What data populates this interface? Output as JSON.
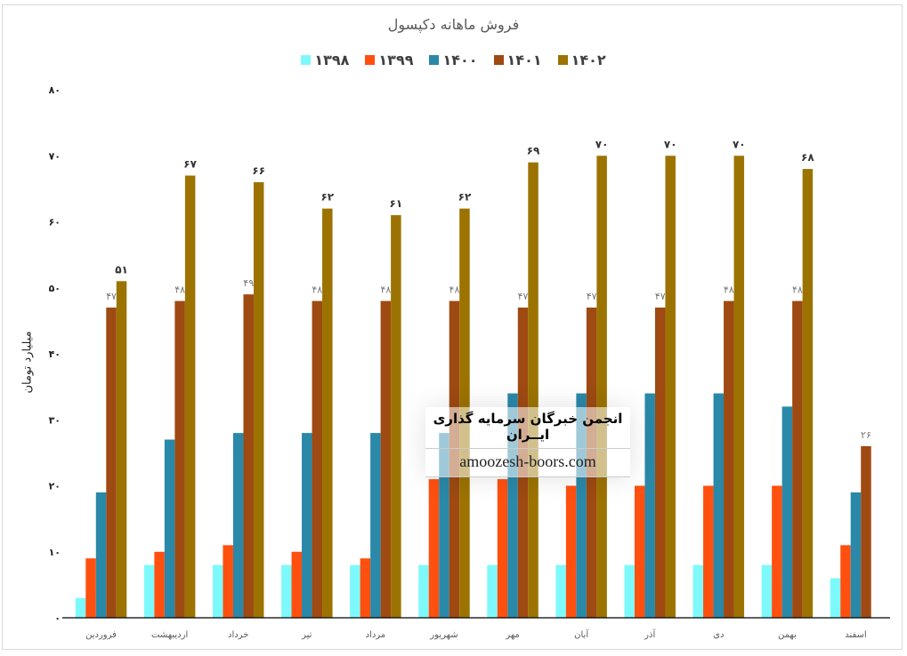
{
  "chart_data": {
    "type": "bar",
    "title": "فروش ماهانه دکپسول",
    "xlabel": "",
    "ylabel": "میلیارد تومان",
    "ylim": [
      0,
      80
    ],
    "yticks": [
      0,
      10,
      20,
      30,
      40,
      50,
      60,
      70,
      80
    ],
    "ytick_labels": [
      "۰",
      "۱۰",
      "۲۰",
      "۳۰",
      "۴۰",
      "۵۰",
      "۶۰",
      "۷۰",
      "۸۰"
    ],
    "legend_position": "top-center",
    "categories": [
      "فروردین",
      "اردیبهشت",
      "خرداد",
      "تیر",
      "مرداد",
      "شهریور",
      "مهر",
      "آبان",
      "آذر",
      "دی",
      "بهمن",
      "اسفند"
    ],
    "series": [
      {
        "name": "۱۳۹۸",
        "color": "#7ef9fb",
        "values": [
          3,
          8,
          8,
          8,
          8,
          8,
          8,
          8,
          8,
          8,
          8,
          6
        ],
        "labels": null
      },
      {
        "name": "۱۳۹۹",
        "color": "#ff5010",
        "values": [
          9,
          10,
          11,
          10,
          9,
          21,
          21,
          20,
          20,
          20,
          20,
          11
        ],
        "labels": null
      },
      {
        "name": "۱۴۰۰",
        "color": "#2a88a8",
        "values": [
          19,
          27,
          28,
          28,
          28,
          28,
          34,
          34,
          34,
          34,
          32,
          19
        ],
        "labels": null
      },
      {
        "name": "۱۴۰۱",
        "color": "#9e4a12",
        "values": [
          47,
          48,
          49,
          48,
          48,
          48,
          47,
          47,
          47,
          48,
          48,
          26
        ],
        "labels": [
          "۴۷",
          "۴۸",
          "۴۹",
          "۴۸",
          "۴۸",
          "۴۸",
          "۴۷",
          "۴۷",
          "۴۷",
          "۴۸",
          "۴۸",
          "۲۶"
        ]
      },
      {
        "name": "۱۴۰۲",
        "color": "#9c7300",
        "values": [
          51,
          67,
          66,
          62,
          61,
          62,
          69,
          70,
          70,
          70,
          68,
          null
        ],
        "labels": [
          "۵۱",
          "۶۷",
          "۶۶",
          "۶۲",
          "۶۱",
          "۶۲",
          "۶۹",
          "۷۰",
          "۷۰",
          "۷۰",
          "۶۸",
          null
        ]
      }
    ]
  },
  "watermark": {
    "name": "انجمن خبرگان سرمایه گذاری ایــران",
    "site": "amoozesh-boors.com"
  }
}
